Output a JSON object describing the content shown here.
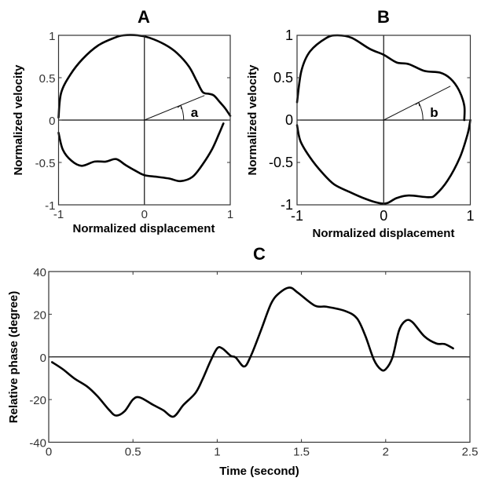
{
  "chart_data": [
    {
      "id": "A",
      "type": "line",
      "title": "A",
      "xlabel": "Normalized displacement",
      "ylabel": "Normalized velocity",
      "xlim": [
        -1,
        1
      ],
      "ylim": [
        -1,
        1
      ],
      "xticks": [
        -1,
        0,
        1
      ],
      "xtick_labels": [
        "-1",
        "0",
        "1"
      ],
      "yticks": [
        1,
        0.5,
        0,
        -0.5,
        -1
      ],
      "ytick_labels": [
        "1",
        "0.5",
        "0",
        "-0.5",
        "-1"
      ],
      "grid": false,
      "zero_lines": true,
      "series": [
        {
          "name": "upper branch",
          "x": [
            -1.0,
            -0.97,
            -0.86,
            -0.72,
            -0.54,
            -0.35,
            -0.24,
            -0.08,
            0.06,
            0.24,
            0.38,
            0.52,
            0.61,
            0.68,
            0.75,
            0.81,
            0.88,
            0.94,
            1.0
          ],
          "y": [
            0.03,
            0.32,
            0.54,
            0.72,
            0.88,
            0.97,
            1.0,
            1.0,
            0.97,
            0.89,
            0.79,
            0.63,
            0.46,
            0.33,
            0.31,
            0.29,
            0.21,
            0.14,
            0.05
          ]
        },
        {
          "name": "lower branch",
          "x": [
            -1.0,
            -0.95,
            -0.85,
            -0.73,
            -0.58,
            -0.45,
            -0.33,
            -0.22,
            -0.1,
            0.0,
            0.15,
            0.29,
            0.42,
            0.56,
            0.68,
            0.79,
            0.87,
            0.92
          ],
          "y": [
            -0.15,
            -0.35,
            -0.48,
            -0.54,
            -0.49,
            -0.49,
            -0.46,
            -0.53,
            -0.6,
            -0.65,
            -0.67,
            -0.69,
            -0.72,
            -0.67,
            -0.52,
            -0.34,
            -0.16,
            -0.04
          ]
        }
      ],
      "annotation": {
        "label": "a",
        "ray_to": [
          0.7,
          0.29
        ]
      }
    },
    {
      "id": "B",
      "type": "line",
      "title": "B",
      "xlabel": "Normalized displacement",
      "ylabel": "Normalized velocity",
      "xlim": [
        -1,
        1
      ],
      "ylim": [
        -1,
        1
      ],
      "xticks": [
        -1,
        0,
        1
      ],
      "xtick_labels": [
        "-1",
        "0",
        "1"
      ],
      "yticks": [
        1,
        0.5,
        0,
        -0.5,
        -1
      ],
      "ytick_labels": [
        "1",
        "0.5",
        "0",
        "-0.5",
        "-1"
      ],
      "grid": false,
      "zero_lines": true,
      "series": [
        {
          "name": "upper branch",
          "x": [
            -1.0,
            -0.95,
            -0.85,
            -0.66,
            -0.53,
            -0.37,
            -0.16,
            0.0,
            0.15,
            0.29,
            0.47,
            0.65,
            0.77,
            0.87,
            0.93,
            0.93
          ],
          "y": [
            0.21,
            0.58,
            0.81,
            0.97,
            1.0,
            0.97,
            0.84,
            0.77,
            0.68,
            0.66,
            0.58,
            0.56,
            0.49,
            0.35,
            0.17,
            0.0
          ]
        },
        {
          "name": "lower branch",
          "x": [
            -1.0,
            -0.96,
            -0.85,
            -0.71,
            -0.57,
            -0.39,
            -0.21,
            -0.05,
            0.04,
            0.15,
            0.29,
            0.52,
            0.6,
            0.74,
            0.88,
            0.97,
            1.0
          ],
          "y": [
            -0.06,
            -0.25,
            -0.44,
            -0.62,
            -0.76,
            -0.85,
            -0.93,
            -0.98,
            -0.98,
            -0.92,
            -0.89,
            -0.91,
            -0.88,
            -0.71,
            -0.44,
            -0.16,
            0.0
          ]
        }
      ],
      "annotation": {
        "label": "b",
        "ray_to": [
          0.77,
          0.4
        ]
      }
    },
    {
      "id": "C",
      "type": "line",
      "title": "C",
      "xlabel": "Time (second)",
      "ylabel": "Relative phase (degree)",
      "xlim": [
        0,
        2.5
      ],
      "ylim": [
        -40,
        40
      ],
      "xticks": [
        0,
        0.5,
        1,
        1.5,
        2,
        2.5
      ],
      "xtick_labels": [
        "0",
        "0.5",
        "1",
        "1.5",
        "2",
        "2.5"
      ],
      "yticks": [
        40,
        20,
        0,
        -20,
        -40
      ],
      "ytick_labels": [
        "40",
        "20",
        "0",
        "-20",
        "-40"
      ],
      "grid": false,
      "zero_lines": true,
      "series": [
        {
          "name": "relative phase",
          "x": [
            0.02,
            0.084,
            0.15,
            0.23,
            0.29,
            0.36,
            0.4,
            0.45,
            0.5,
            0.54,
            0.62,
            0.68,
            0.74,
            0.8,
            0.87,
            0.91,
            0.96,
            1.0,
            1.03,
            1.08,
            1.11,
            1.16,
            1.2,
            1.26,
            1.32,
            1.37,
            1.43,
            1.48,
            1.58,
            1.65,
            1.76,
            1.83,
            1.88,
            1.93,
            1.97,
            2.0,
            2.04,
            2.08,
            2.12,
            2.16,
            2.23,
            2.3,
            2.35,
            2.4
          ],
          "y": [
            -2.5,
            -5.8,
            -10,
            -14,
            -18.5,
            -25,
            -27.5,
            -25.5,
            -20,
            -19,
            -22.5,
            -25,
            -28,
            -22.5,
            -17,
            -11,
            -2,
            4,
            4,
            0.5,
            -0.3,
            -4.5,
            0.5,
            12.5,
            25,
            30,
            32.5,
            30,
            24,
            23.5,
            21.5,
            18,
            9.7,
            -1.3,
            -5.8,
            -5.8,
            -0.3,
            12.6,
            17,
            16.2,
            9.6,
            6.3,
            6,
            4
          ]
        }
      ]
    }
  ]
}
